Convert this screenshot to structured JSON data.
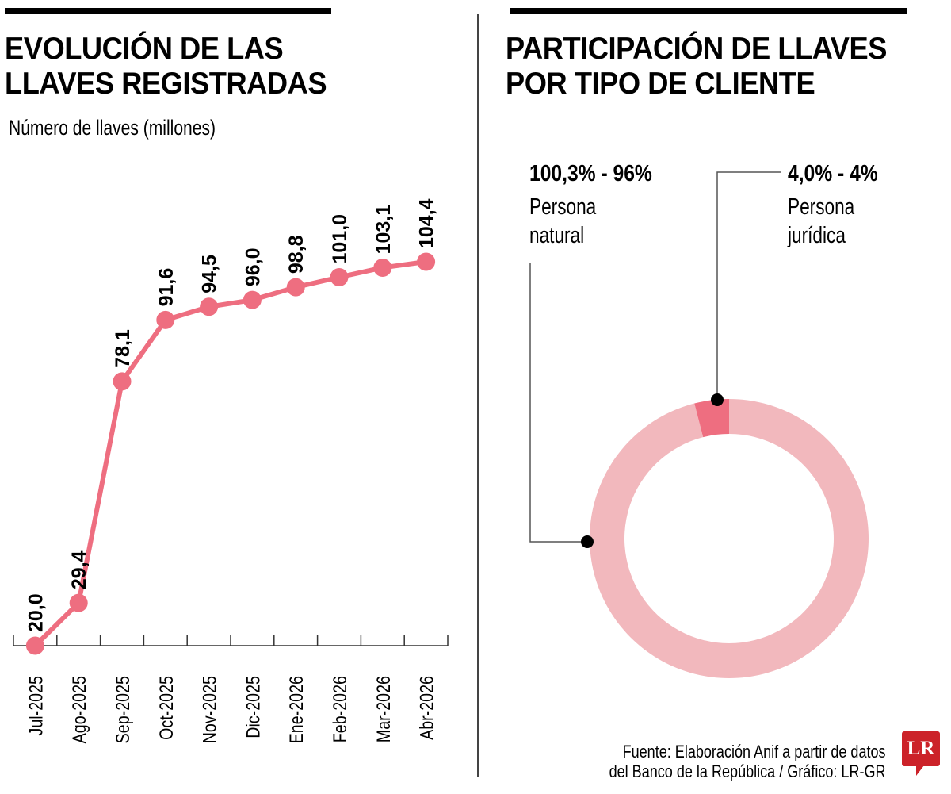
{
  "left_panel": {
    "title_line1": "EVOLUCIÓN DE LAS",
    "title_line2": "LLAVES REGISTRADAS",
    "subtitle": "Número de llaves (millones)"
  },
  "right_panel": {
    "title_line1": "PARTICIPACIÓN DE LLAVES",
    "title_line2": "POR TIPO DE CLIENTE",
    "legend": [
      {
        "value_label": "100,3% - 96%",
        "name": "Persona\nnatural"
      },
      {
        "value_label": "4,0% - 4%",
        "name": "Persona\njurídica"
      }
    ]
  },
  "footer": {
    "source_line1": "Fuente: Elaboración Anif a partir de datos",
    "source_line2": "del Banco de la República / Gráfico: LR-GR",
    "logo_text": "LR"
  },
  "colors": {
    "line": "#ee6e80",
    "donut_main": "#f2b8bd",
    "donut_highlight": "#ee6e80",
    "logo": "#cc2229"
  },
  "chart_data": [
    {
      "type": "line",
      "title": "EVOLUCIÓN DE LAS LLAVES REGISTRADAS",
      "subtitle": "Número de llaves (millones)",
      "xlabel": "",
      "ylabel": "Número de llaves (millones)",
      "categories": [
        "Jul-2025",
        "Ago-2025",
        "Sep-2025",
        "Oct-2025",
        "Nov-2025",
        "Dic-2025",
        "Ene-2026",
        "Feb-2026",
        "Mar-2026",
        "Abr-2026"
      ],
      "values": [
        20.0,
        29.4,
        78.1,
        91.6,
        94.5,
        96.0,
        98.8,
        101.0,
        103.1,
        104.4
      ],
      "value_labels": [
        "20,0",
        "29,4",
        "78,1",
        "91,6",
        "94,5",
        "96,0",
        "98,8",
        "101,0",
        "103,1",
        "104,4"
      ],
      "ylim": [
        20,
        104.4
      ],
      "grid": false
    },
    {
      "type": "pie",
      "variant": "donut",
      "title": "PARTICIPACIÓN DE LLAVES POR TIPO DE CLIENTE",
      "labels": [
        "Persona natural",
        "Persona jurídica"
      ],
      "values": [
        96,
        4
      ],
      "value_labels": [
        "100,3% - 96%",
        "4,0% - 4%"
      ]
    }
  ]
}
